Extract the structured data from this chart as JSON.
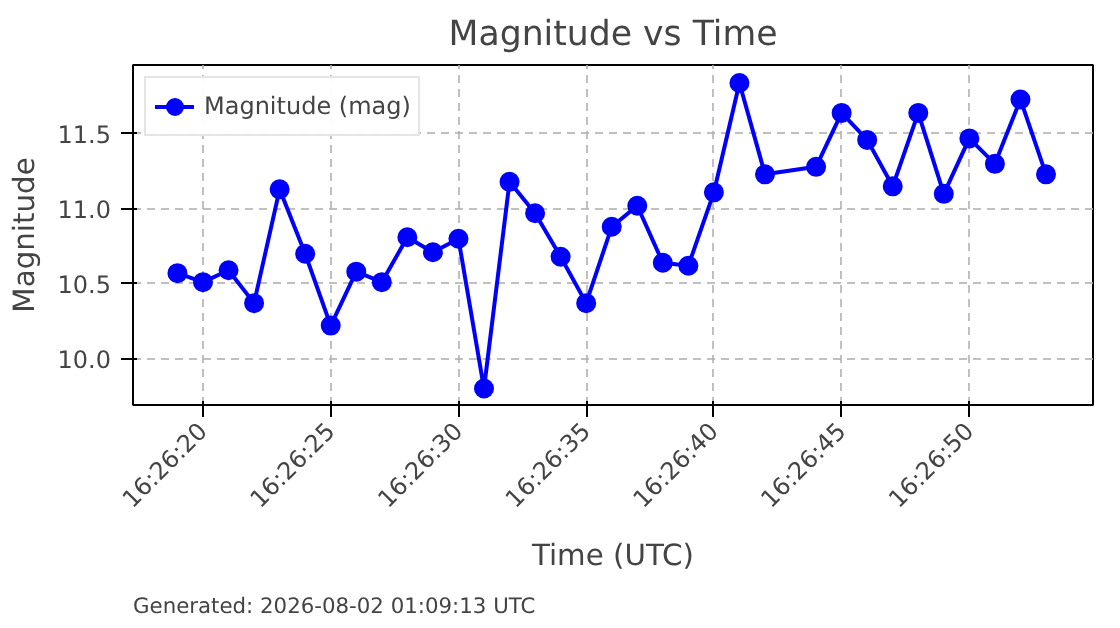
{
  "chart_data": {
    "type": "line",
    "title": "Magnitude vs Time",
    "xlabel": "Time (UTC)",
    "ylabel": "Magnitude",
    "annotations": [
      "Generated: 2026-08-02 01:09:13 UTC"
    ],
    "x": [
      16.4386111,
      16.4388889,
      16.4391667,
      16.4394444,
      16.4397222,
      16.44,
      16.4402778,
      16.4405556,
      16.4408333,
      16.4411111,
      16.4413889,
      16.4416667,
      16.4419444,
      16.4422222,
      16.4425,
      16.4427778,
      16.4430556,
      16.4433333,
      16.4436111,
      16.4438889,
      16.4441667,
      16.4444444,
      16.4447222,
      16.445,
      16.4455556,
      16.4458333,
      16.4461111,
      16.4463889,
      16.4466667,
      16.4469444,
      16.4472222,
      16.4475,
      16.4477778,
      16.4480556
    ],
    "series": [
      {
        "name": "Magnitude (mag)",
        "color": "#0000ff",
        "values": [
          10.57,
          10.51,
          10.59,
          10.37,
          11.13,
          10.7,
          10.22,
          10.58,
          10.51,
          10.81,
          10.71,
          10.8,
          9.8,
          11.18,
          10.97,
          10.68,
          10.37,
          10.88,
          11.02,
          10.64,
          10.62,
          11.11,
          11.84,
          11.23,
          11.28,
          11.64,
          11.46,
          11.15,
          11.64,
          11.1,
          11.47,
          11.3,
          11.73,
          11.23
        ]
      }
    ],
    "xlim": [
      16.4381278,
      16.4485667
    ],
    "ylim": [
      9.69,
      11.96
    ],
    "xticks": [
      {
        "value": 16.4388889,
        "label": "16:26:20"
      },
      {
        "value": 16.4402778,
        "label": "16:26:25"
      },
      {
        "value": 16.4416667,
        "label": "16:26:30"
      },
      {
        "value": 16.4430556,
        "label": "16:26:35"
      },
      {
        "value": 16.4444444,
        "label": "16:26:40"
      },
      {
        "value": 16.4458333,
        "label": "16:26:45"
      },
      {
        "value": 16.4472222,
        "label": "16:26:50"
      }
    ],
    "yticks": [
      {
        "value": 10,
        "label": "10.0"
      },
      {
        "value": 10.5,
        "label": "10.5"
      },
      {
        "value": 11,
        "label": "11.0"
      },
      {
        "value": 11.5,
        "label": "11.5"
      }
    ],
    "grid": true,
    "legend": "top left",
    "marker": "circle",
    "line_style": "solid"
  }
}
